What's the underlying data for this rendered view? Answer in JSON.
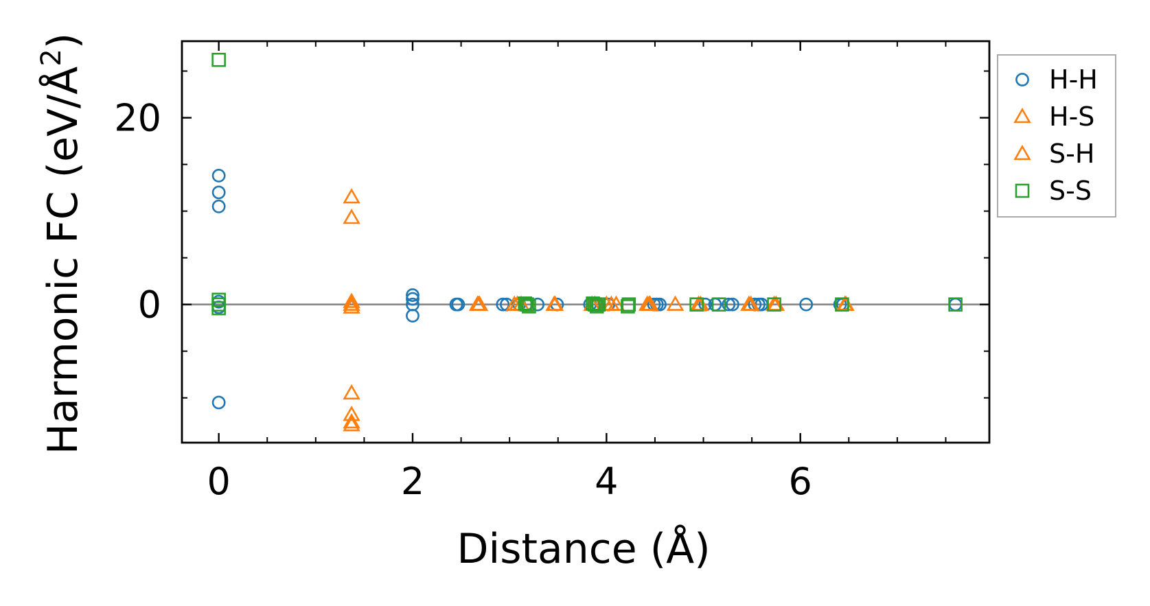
{
  "chart_data": {
    "type": "scatter",
    "xlabel": "Distance (Å)",
    "ylabel": "Harmonic FC (eV/Å²)",
    "ylabel_parts": {
      "base": "Harmonic FC (eV/Å",
      "sup": "2",
      "close": ")"
    },
    "xlim": [
      -0.38,
      7.95
    ],
    "ylim": [
      -14.8,
      28.2
    ],
    "x_ticks": [
      0,
      2,
      4,
      6
    ],
    "x_tick_labels": [
      "0",
      "2",
      "4",
      "6"
    ],
    "x_minor_ticks": [
      0.5,
      1,
      1.5,
      2.5,
      3,
      3.5,
      4.5,
      5,
      5.5,
      6.5,
      7,
      7.5
    ],
    "y_ticks": [
      0,
      20
    ],
    "y_tick_labels": [
      "0",
      "20"
    ],
    "y_minor_ticks": [
      -10,
      -5,
      5,
      10,
      15,
      25
    ],
    "zero_line": true,
    "grid": false,
    "legend_position": "outside-right",
    "series": [
      {
        "name": "H-H",
        "marker": "circle",
        "color": "#1f77b4",
        "points": [
          [
            0,
            13.8
          ],
          [
            0,
            12.0
          ],
          [
            0,
            10.5
          ],
          [
            0,
            0.3
          ],
          [
            0,
            -0.3
          ],
          [
            0,
            -10.5
          ],
          [
            2.0,
            1.0
          ],
          [
            2.0,
            0.6
          ],
          [
            2.0,
            0
          ],
          [
            2.0,
            -1.2
          ],
          [
            2.45,
            0
          ],
          [
            2.47,
            0
          ],
          [
            2.93,
            0
          ],
          [
            2.97,
            0
          ],
          [
            3.1,
            0
          ],
          [
            3.17,
            0
          ],
          [
            3.29,
            0
          ],
          [
            3.49,
            0
          ],
          [
            3.83,
            0
          ],
          [
            3.91,
            0
          ],
          [
            4.02,
            0
          ],
          [
            4.49,
            0
          ],
          [
            4.52,
            0
          ],
          [
            4.55,
            0
          ],
          [
            5.02,
            0
          ],
          [
            5.12,
            0
          ],
          [
            5.26,
            0
          ],
          [
            5.3,
            0
          ],
          [
            5.53,
            0
          ],
          [
            5.57,
            0
          ],
          [
            5.6,
            0
          ],
          [
            6.06,
            0
          ],
          [
            6.41,
            0
          ],
          [
            6.44,
            0
          ],
          [
            7.6,
            0
          ]
        ]
      },
      {
        "name": "H-S",
        "marker": "triangle",
        "color": "#ff7f0e",
        "points": [
          [
            1.37,
            11.5
          ],
          [
            1.37,
            9.3
          ],
          [
            1.37,
            0.3
          ],
          [
            1.37,
            -0.3
          ],
          [
            1.37,
            -9.5
          ],
          [
            1.37,
            -11.8
          ],
          [
            1.37,
            -12.6
          ],
          [
            1.37,
            -12.9
          ],
          [
            2.67,
            0
          ],
          [
            2.69,
            0
          ],
          [
            3.05,
            0
          ],
          [
            3.12,
            0
          ],
          [
            3.46,
            0
          ],
          [
            3.85,
            0
          ],
          [
            4.0,
            0
          ],
          [
            4.1,
            0
          ],
          [
            4.42,
            0
          ],
          [
            4.45,
            0
          ],
          [
            4.71,
            0
          ],
          [
            4.95,
            0
          ],
          [
            5.47,
            0
          ],
          [
            5.73,
            0
          ],
          [
            6.47,
            0
          ]
        ]
      },
      {
        "name": "S-H",
        "marker": "triangle",
        "color": "#ff7f0e",
        "points": [
          [
            1.37,
            0
          ],
          [
            2.68,
            0
          ],
          [
            3.08,
            0
          ],
          [
            3.47,
            0
          ],
          [
            3.88,
            0
          ],
          [
            4.05,
            0
          ],
          [
            4.44,
            0
          ],
          [
            4.97,
            0
          ],
          [
            5.49,
            0
          ],
          [
            5.75,
            0
          ],
          [
            6.46,
            0
          ]
        ]
      },
      {
        "name": "S-S",
        "marker": "square",
        "color": "#2ca02c",
        "points": [
          [
            0,
            26.2
          ],
          [
            0,
            0.5
          ],
          [
            0,
            0
          ],
          [
            0,
            -0.4
          ],
          [
            3.16,
            0.1
          ],
          [
            3.18,
            0
          ],
          [
            3.2,
            -0.2
          ],
          [
            3.86,
            0.1
          ],
          [
            3.88,
            0
          ],
          [
            3.9,
            -0.2
          ],
          [
            3.92,
            0
          ],
          [
            4.23,
            0
          ],
          [
            4.22,
            -0.2
          ],
          [
            4.93,
            0
          ],
          [
            5.16,
            0
          ],
          [
            5.73,
            0
          ],
          [
            6.43,
            0
          ],
          [
            7.6,
            0
          ]
        ]
      }
    ]
  }
}
